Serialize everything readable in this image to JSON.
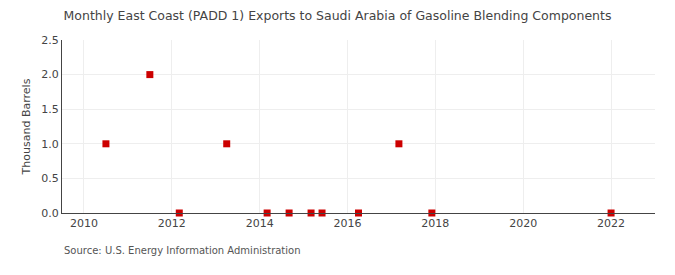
{
  "chart_data": {
    "type": "scatter",
    "title": "Monthly East Coast (PADD 1) Exports to Saudi Arabia of Gasoline Blending Components",
    "ylabel": "Thousand Barrels",
    "source": "Source: U.S. Energy Information Administration",
    "x": [
      2010.5,
      2011.5,
      2012.17,
      2013.25,
      2014.17,
      2014.67,
      2015.17,
      2015.42,
      2016.25,
      2017.17,
      2017.92,
      2022.0
    ],
    "values": [
      1.0,
      2.0,
      0.0,
      1.0,
      0.0,
      0.0,
      0.0,
      0.0,
      0.0,
      1.0,
      0.0,
      0.0
    ],
    "color": "#cc0000",
    "marker": "square",
    "xlim": [
      2009.5,
      2023.0
    ],
    "ylim": [
      0.0,
      2.5
    ],
    "xticks": [
      2010,
      2012,
      2014,
      2016,
      2018,
      2020,
      2022
    ],
    "yticks": [
      {
        "value": 0.0,
        "label": "0.0"
      },
      0.5,
      {
        "value": 1.0,
        "label": "1.0"
      },
      1.5,
      {
        "value": 2.0,
        "label": "2.0"
      },
      2.5
    ],
    "grid": true
  }
}
